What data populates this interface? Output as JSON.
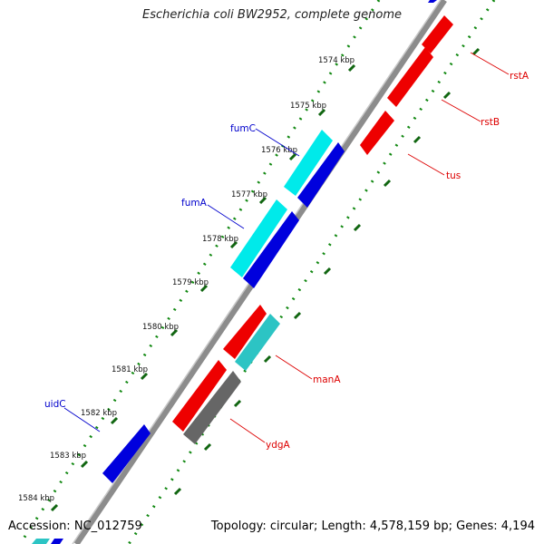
{
  "title": "Escherichia coli BW2952, complete genome",
  "footer": {
    "accession": "Accession: NC_012759",
    "topology": "Topology: circular; Length: 4,578,159 bp; Genes: 4,194"
  },
  "colors": {
    "backbone": "#8c8c8c",
    "scale_ticks": "#118811",
    "forward_gene": "#ff0000",
    "reverse_gene": "#0000ee",
    "cyan_gene": "#00e5e5",
    "teal_gene": "#2cc0c0",
    "gray_gene": "#666666",
    "label_blue": "#0000cc",
    "label_red": "#dd0000"
  },
  "scale_labels": [
    "1574 kbp",
    "1575 kbp",
    "1576 kbp",
    "1577 kbp",
    "1578 kbp",
    "1579 kbp",
    "1580 kbp",
    "1581 kbp",
    "1582 kbp",
    "1583 kbp",
    "1584 kbp"
  ],
  "gene_labels": {
    "fumC": "fumC",
    "fumA": "fumA",
    "uidC": "uidC",
    "rstA": "rstA",
    "rstB": "rstB",
    "tus": "tus",
    "manA": "manA",
    "ydgA": "ydgA"
  }
}
